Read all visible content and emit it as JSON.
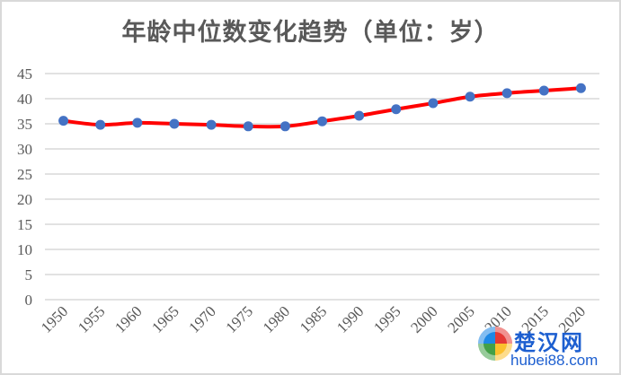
{
  "chart_data": {
    "type": "line",
    "title": "年龄中位数变化趋势（单位：岁）",
    "xlabel": "",
    "ylabel": "",
    "categories": [
      "1950",
      "1955",
      "1960",
      "1965",
      "1970",
      "1975",
      "1980",
      "1985",
      "1990",
      "1995",
      "2000",
      "2005",
      "2010",
      "2015",
      "2020"
    ],
    "series": [
      {
        "name": "年龄中位数",
        "values": [
          35.6,
          34.8,
          35.2,
          35.0,
          34.8,
          34.5,
          34.5,
          35.5,
          36.6,
          37.9,
          39.1,
          40.4,
          41.1,
          41.6,
          42.1
        ],
        "line_color": "#ff0000",
        "marker_color": "#4472c4"
      }
    ],
    "ylim": [
      0,
      45
    ],
    "yticks": [
      0,
      5,
      10,
      15,
      20,
      25,
      30,
      35,
      40,
      45
    ],
    "grid": true,
    "legend": "none"
  },
  "colors": {
    "line": "#ff0000",
    "marker": "#4472c4",
    "grid": "#d9d9d9",
    "text": "#595959",
    "watermark": "#1d5fd0"
  },
  "watermark": {
    "name": "楚汉网",
    "domain": "hubei88.com"
  }
}
